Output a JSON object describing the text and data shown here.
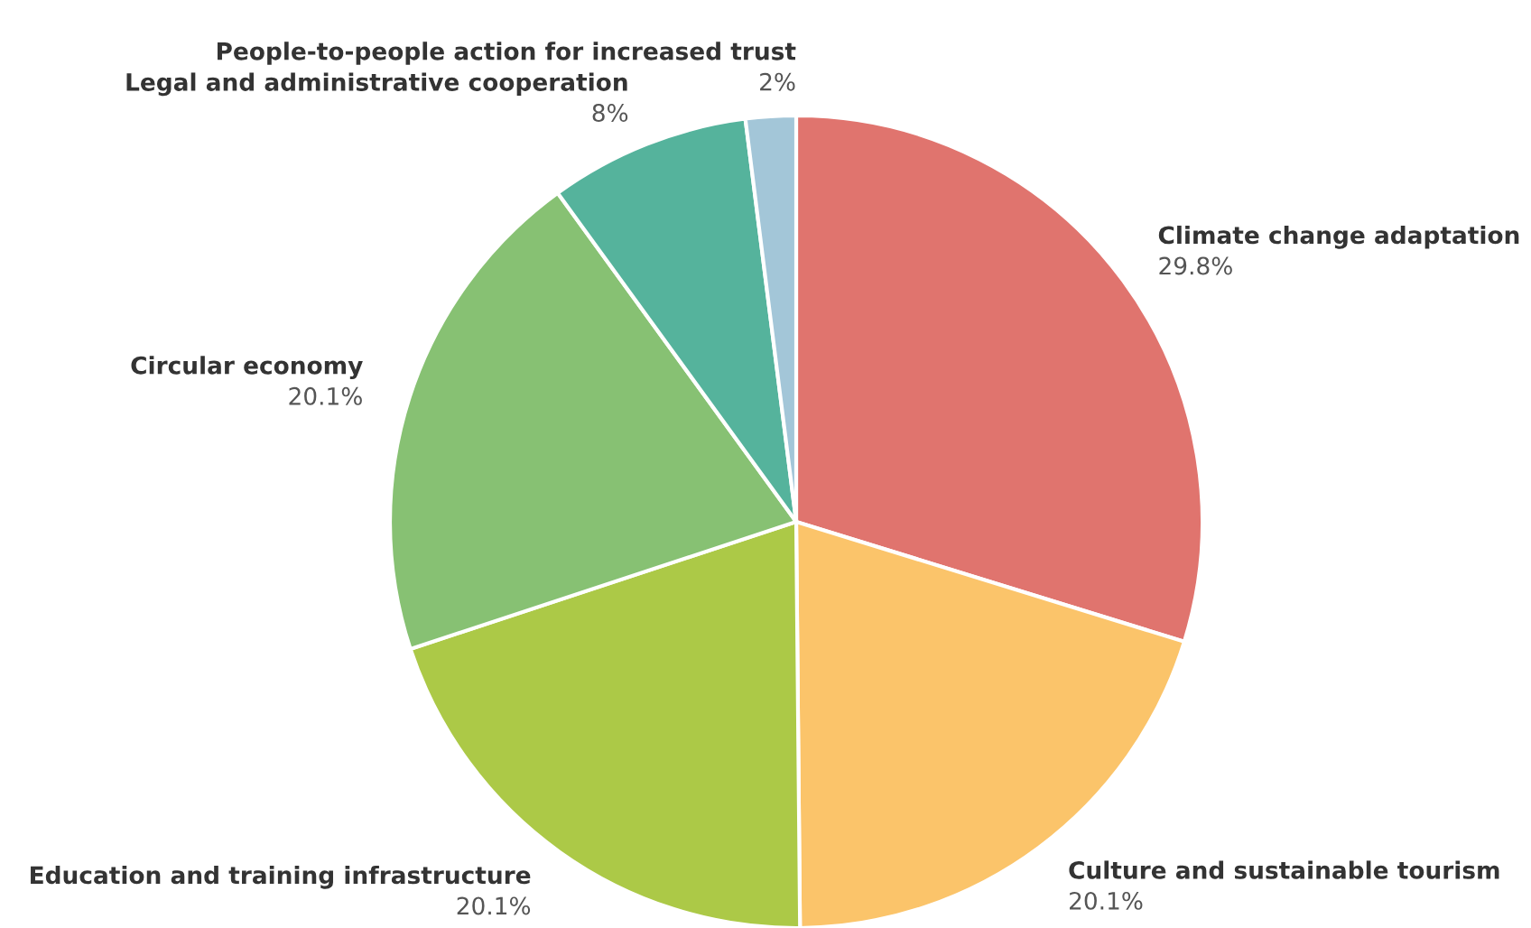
{
  "chart_data": {
    "type": "pie",
    "categories": [
      "Climate change adaptation",
      "Culture and sustainable tourism",
      "Education and training infrastructure",
      "Circular economy",
      "Legal and administrative cooperation",
      "People-to-people action for increased trust"
    ],
    "values": [
      29.8,
      20.1,
      20.1,
      20.1,
      8,
      2
    ],
    "value_labels": [
      "29.8%",
      "20.1%",
      "20.1%",
      "20.1%",
      "8%",
      "2%"
    ],
    "colors": [
      "#e0746e",
      "#fbc46a",
      "#acc947",
      "#87c173",
      "#55b39c",
      "#a3c6d8"
    ]
  }
}
